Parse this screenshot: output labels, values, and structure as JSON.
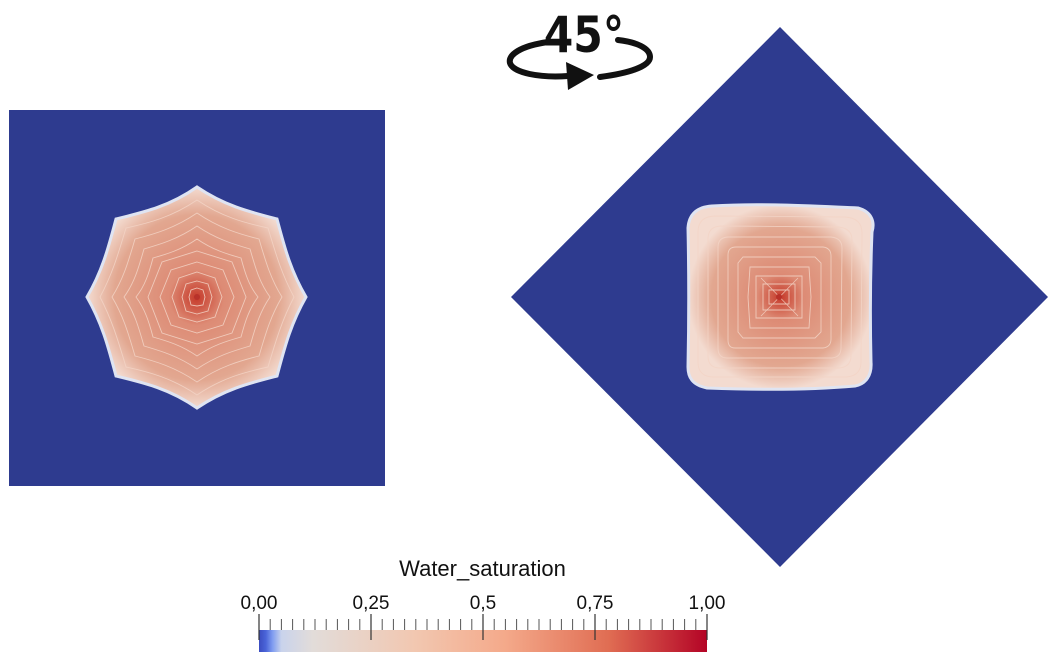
{
  "rotation_label": "45°",
  "field_name": "Water_saturation",
  "colorbar": {
    "ticks": [
      {
        "value": 0.0,
        "label": "0,00"
      },
      {
        "value": 0.25,
        "label": "0,25"
      },
      {
        "value": 0.5,
        "label": "0,5"
      },
      {
        "value": 0.75,
        "label": "0,75"
      },
      {
        "value": 1.0,
        "label": "1,00"
      }
    ],
    "range": [
      0,
      1
    ],
    "colormap": [
      "#3b4cc0",
      "#6688ee",
      "#dddddd",
      "#f7b89c",
      "#e86a50",
      "#b40426"
    ]
  },
  "colors": {
    "background_domain": "#2e3b8f",
    "front_outer": "#f2dcd2",
    "front_inner": "#d99a84",
    "center": "#c63a2a"
  }
}
